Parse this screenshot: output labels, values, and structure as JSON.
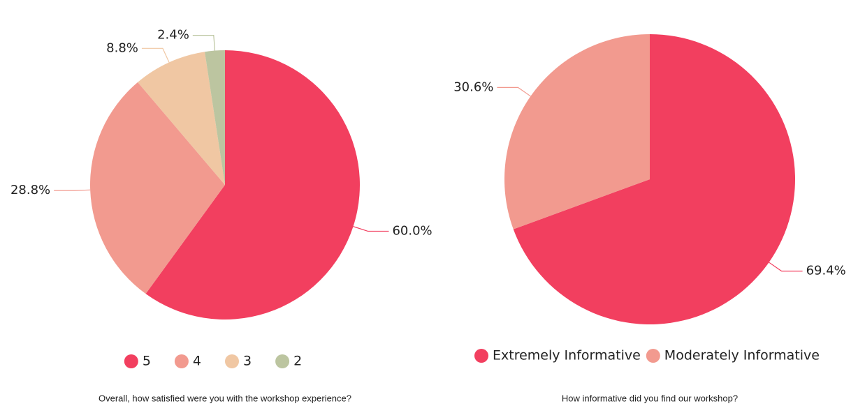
{
  "chart_data": [
    {
      "type": "pie",
      "title": "Overall, how satisfied were you with the workshop experience?",
      "categories": [
        "5",
        "4",
        "3",
        "2"
      ],
      "values": [
        60.0,
        28.8,
        8.8,
        2.4
      ],
      "value_labels": [
        "60.0%",
        "28.8%",
        "8.8%",
        "2.4%"
      ],
      "colors": [
        "#f23f5f",
        "#f29a8f",
        "#f0c7a3",
        "#bcc5a0"
      ],
      "legend": "bottom"
    },
    {
      "type": "pie",
      "title": "How informative did you find our workshop?",
      "categories": [
        "Extremely Informative",
        "Moderately Informative"
      ],
      "values": [
        69.4,
        30.6
      ],
      "value_labels": [
        "69.4%",
        "30.6%"
      ],
      "colors": [
        "#f23f5f",
        "#f29a8f"
      ],
      "legend": "bottom"
    }
  ]
}
